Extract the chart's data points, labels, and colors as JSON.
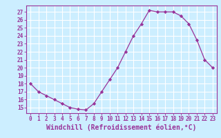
{
  "x": [
    0,
    1,
    2,
    3,
    4,
    5,
    6,
    7,
    8,
    9,
    10,
    11,
    12,
    13,
    14,
    15,
    16,
    17,
    18,
    19,
    20,
    21,
    22,
    23
  ],
  "y": [
    18,
    17,
    16.5,
    16,
    15.5,
    15,
    14.8,
    14.7,
    15.5,
    17,
    18.5,
    20,
    22,
    24,
    25.5,
    27.2,
    27,
    27,
    27,
    26.5,
    25.5,
    23.5,
    21,
    20
  ],
  "line_color": "#993399",
  "marker": "D",
  "marker_size": 2.2,
  "bg_color": "#cceeff",
  "grid_color": "#ffffff",
  "xlabel": "Windchill (Refroidissement éolien,°C)",
  "xlabel_fontsize": 7,
  "xtick_labels": [
    "0",
    "1",
    "2",
    "3",
    "4",
    "5",
    "6",
    "7",
    "8",
    "9",
    "10",
    "11",
    "12",
    "13",
    "14",
    "15",
    "16",
    "17",
    "18",
    "19",
    "20",
    "21",
    "22",
    "23"
  ],
  "ytick_vals": [
    15,
    16,
    17,
    18,
    19,
    20,
    21,
    22,
    23,
    24,
    25,
    26,
    27
  ],
  "ytick_labels": [
    "15",
    "16",
    "17",
    "18",
    "19",
    "20",
    "21",
    "22",
    "23",
    "24",
    "25",
    "26",
    "27"
  ],
  "ylim": [
    14.3,
    27.8
  ],
  "xlim": [
    -0.5,
    23.5
  ],
  "line_color_spine": "#993399",
  "tick_color": "#993399",
  "label_color": "#993399",
  "tick_fontsize": 5.5
}
